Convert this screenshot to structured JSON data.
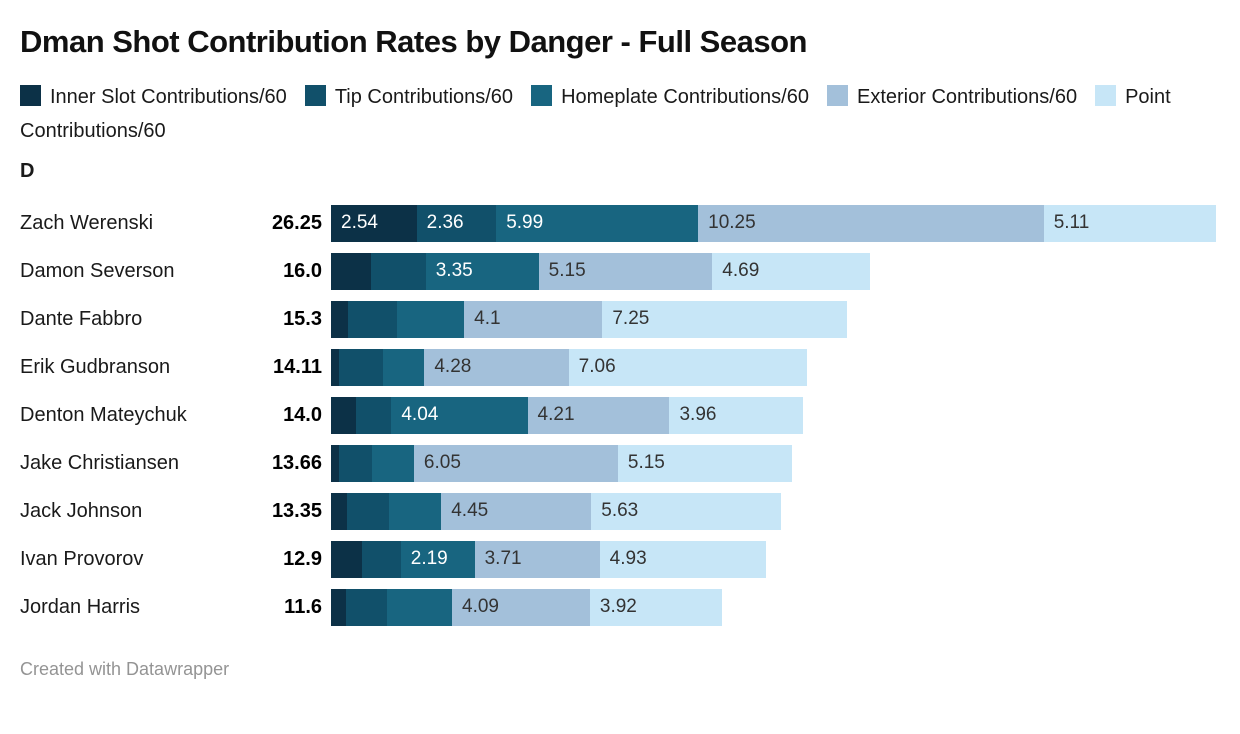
{
  "title": "Dman Shot Contribution Rates by Danger - Full Season",
  "group_label": "D",
  "footer": "Created with Datawrapper",
  "colors": {
    "inner_slot": "#0c3147",
    "tip": "#11506a",
    "homeplate": "#186580",
    "exterior": "#a3c0da",
    "point": "#c7e6f7",
    "dark_value_text": "#333333",
    "light_value_text": "#ffffff"
  },
  "legend": {
    "items": [
      {
        "label": "Inner Slot Contributions/60",
        "color": "#0c3147"
      },
      {
        "label": "Tip Contributions/60",
        "color": "#11506a"
      },
      {
        "label": "Homeplate Contributions/60",
        "color": "#186580"
      },
      {
        "label": "Exterior Contributions/60",
        "color": "#a3c0da"
      },
      {
        "label": "Point Contributions/60",
        "color": "#c7e6f7"
      }
    ]
  },
  "chart_data": {
    "type": "bar",
    "stacked": true,
    "orientation": "horizontal",
    "title": "Dman Shot Contribution Rates by Danger - Full Season",
    "group": "D",
    "xlim": [
      0,
      26.25
    ],
    "series_names": [
      "Inner Slot Contributions/60",
      "Tip Contributions/60",
      "Homeplate Contributions/60",
      "Exterior Contributions/60",
      "Point Contributions/60"
    ],
    "series_colors": [
      "#0c3147",
      "#11506a",
      "#186580",
      "#a3c0da",
      "#c7e6f7"
    ],
    "rows": [
      {
        "name": "Zach Werenski",
        "total": 26.25,
        "total_label": "26.25",
        "segments": [
          {
            "value": 2.54,
            "label": "2.54"
          },
          {
            "value": 2.36,
            "label": "2.36"
          },
          {
            "value": 5.99,
            "label": "5.99"
          },
          {
            "value": 10.25,
            "label": "10.25"
          },
          {
            "value": 5.11,
            "label": "5.11"
          }
        ]
      },
      {
        "name": "Damon Severson",
        "total": 16.0,
        "total_label": "16.0",
        "segments": [
          {
            "value": 1.2,
            "label": ""
          },
          {
            "value": 1.61,
            "label": ""
          },
          {
            "value": 3.35,
            "label": "3.35"
          },
          {
            "value": 5.15,
            "label": "5.15"
          },
          {
            "value": 4.69,
            "label": "4.69"
          }
        ]
      },
      {
        "name": "Dante Fabbro",
        "total": 15.3,
        "total_label": "15.3",
        "segments": [
          {
            "value": 0.5,
            "label": ""
          },
          {
            "value": 1.45,
            "label": ""
          },
          {
            "value": 2.0,
            "label": ""
          },
          {
            "value": 4.1,
            "label": "4.1"
          },
          {
            "value": 7.25,
            "label": "7.25"
          }
        ]
      },
      {
        "name": "Erik Gudbranson",
        "total": 14.11,
        "total_label": "14.11",
        "segments": [
          {
            "value": 0.25,
            "label": ""
          },
          {
            "value": 1.28,
            "label": ""
          },
          {
            "value": 1.24,
            "label": ""
          },
          {
            "value": 4.28,
            "label": "4.28"
          },
          {
            "value": 7.06,
            "label": "7.06"
          }
        ]
      },
      {
        "name": "Denton Mateychuk",
        "total": 14.0,
        "total_label": "14.0",
        "segments": [
          {
            "value": 0.73,
            "label": ""
          },
          {
            "value": 1.06,
            "label": ""
          },
          {
            "value": 4.04,
            "label": "4.04"
          },
          {
            "value": 4.21,
            "label": "4.21"
          },
          {
            "value": 3.96,
            "label": "3.96"
          }
        ]
      },
      {
        "name": "Jake Christiansen",
        "total": 13.66,
        "total_label": "13.66",
        "segments": [
          {
            "value": 0.25,
            "label": ""
          },
          {
            "value": 0.96,
            "label": ""
          },
          {
            "value": 1.25,
            "label": ""
          },
          {
            "value": 6.05,
            "label": "6.05"
          },
          {
            "value": 5.15,
            "label": "5.15"
          }
        ]
      },
      {
        "name": "Jack Johnson",
        "total": 13.35,
        "total_label": "13.35",
        "segments": [
          {
            "value": 0.47,
            "label": ""
          },
          {
            "value": 1.24,
            "label": ""
          },
          {
            "value": 1.56,
            "label": ""
          },
          {
            "value": 4.45,
            "label": "4.45"
          },
          {
            "value": 5.63,
            "label": "5.63"
          }
        ]
      },
      {
        "name": "Ivan Provorov",
        "total": 12.9,
        "total_label": "12.9",
        "segments": [
          {
            "value": 0.91,
            "label": ""
          },
          {
            "value": 1.16,
            "label": ""
          },
          {
            "value": 2.19,
            "label": "2.19"
          },
          {
            "value": 3.71,
            "label": "3.71"
          },
          {
            "value": 4.93,
            "label": "4.93"
          }
        ]
      },
      {
        "name": "Jordan Harris",
        "total": 11.6,
        "total_label": "11.6",
        "segments": [
          {
            "value": 0.44,
            "label": ""
          },
          {
            "value": 1.21,
            "label": ""
          },
          {
            "value": 1.94,
            "label": ""
          },
          {
            "value": 4.09,
            "label": "4.09"
          },
          {
            "value": 3.92,
            "label": "3.92"
          }
        ]
      }
    ]
  }
}
